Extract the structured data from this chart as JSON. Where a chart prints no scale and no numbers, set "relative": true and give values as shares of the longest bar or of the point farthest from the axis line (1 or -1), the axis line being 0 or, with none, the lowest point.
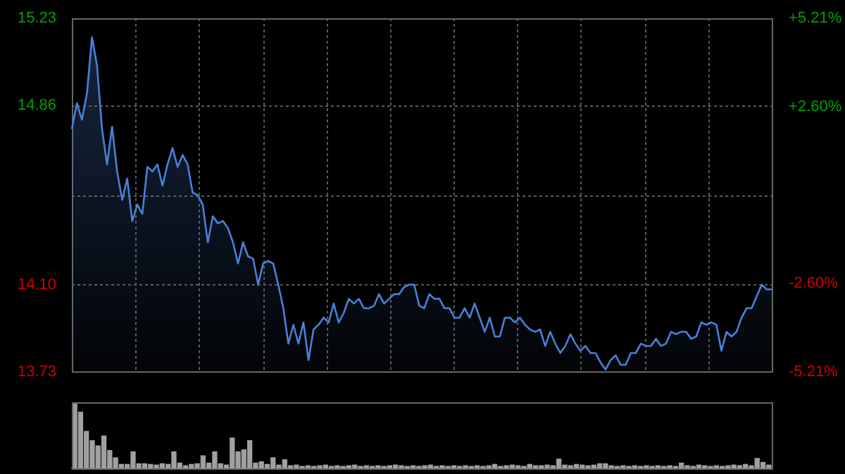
{
  "chart_data": [
    {
      "type": "area",
      "color": "#4a80d8",
      "grid": true,
      "categories": [
        null,
        null,
        null,
        null,
        null,
        null,
        null,
        null,
        null,
        null,
        null,
        null,
        null,
        null,
        null,
        null,
        null,
        null,
        null,
        null,
        null,
        null,
        null,
        null,
        null,
        null,
        null,
        null,
        null,
        null,
        null,
        null,
        null,
        null,
        null,
        null,
        null,
        null,
        null,
        null,
        null,
        null,
        null,
        null,
        null,
        null,
        null,
        null,
        null,
        null,
        null,
        null,
        null,
        null,
        null,
        null,
        null,
        null,
        null,
        null,
        null,
        null,
        null,
        null,
        null,
        null,
        null,
        null,
        null,
        null,
        null,
        null,
        null,
        null,
        null,
        null,
        null,
        null,
        null,
        null,
        null,
        null,
        null,
        null,
        null,
        null,
        null,
        null,
        null,
        null,
        null,
        null,
        null,
        null,
        null,
        null,
        null,
        null,
        null,
        null,
        null,
        null,
        null,
        null,
        null,
        null,
        null,
        null,
        null,
        null,
        null,
        null,
        null,
        null,
        null,
        null,
        null,
        null,
        null,
        null,
        null,
        null,
        null,
        null,
        null,
        null,
        null,
        null,
        null,
        null,
        null,
        null,
        null,
        null,
        null,
        null,
        null,
        null,
        null,
        null
      ],
      "values": [
        14.76,
        14.87,
        14.8,
        14.91,
        15.15,
        15.03,
        14.76,
        14.61,
        14.77,
        14.58,
        14.46,
        14.55,
        14.37,
        14.44,
        14.4,
        14.6,
        14.58,
        14.61,
        14.52,
        14.61,
        14.68,
        14.6,
        14.65,
        14.61,
        14.49,
        14.48,
        14.44,
        14.28,
        14.39,
        14.36,
        14.37,
        14.34,
        14.28,
        14.19,
        14.28,
        14.22,
        14.21,
        14.1,
        14.19,
        14.2,
        14.19,
        14.1,
        14.0,
        13.85,
        13.93,
        13.85,
        13.94,
        13.78,
        13.91,
        13.93,
        13.96,
        13.94,
        14.02,
        13.94,
        13.98,
        14.04,
        14.02,
        14.04,
        14.0,
        14.0,
        14.01,
        14.06,
        14.02,
        14.04,
        14.06,
        14.06,
        14.09,
        14.1,
        14.1,
        14.01,
        14.0,
        14.06,
        14.04,
        14.04,
        14.0,
        14.0,
        13.96,
        13.96,
        14.0,
        13.96,
        14.02,
        13.96,
        13.9,
        13.96,
        13.88,
        13.88,
        13.96,
        13.96,
        13.94,
        13.96,
        13.93,
        13.91,
        13.9,
        13.91,
        13.84,
        13.9,
        13.85,
        13.81,
        13.84,
        13.89,
        13.85,
        13.82,
        13.84,
        13.81,
        13.81,
        13.77,
        13.74,
        13.78,
        13.8,
        13.76,
        13.76,
        13.81,
        13.81,
        13.85,
        13.84,
        13.84,
        13.87,
        13.84,
        13.85,
        13.9,
        13.89,
        13.9,
        13.9,
        13.87,
        13.88,
        13.94,
        13.93,
        13.94,
        13.93,
        13.82,
        13.9,
        13.88,
        13.9,
        13.96,
        14.0,
        14.0,
        14.05,
        14.1,
        14.08,
        14.08
      ],
      "ylim": [
        13.73,
        15.23
      ],
      "yticks": [
        {
          "value": 13.73,
          "label": "13.73"
        },
        {
          "value": 14.1,
          "label": "14.10"
        },
        {
          "value": 14.48,
          "label": null
        },
        {
          "value": 14.86,
          "label": "14.86"
        },
        {
          "value": 15.23,
          "label": "15.23"
        }
      ],
      "y2lim": [
        -5.21,
        5.21
      ],
      "y2ticks": [
        {
          "value": -5.21,
          "label": "-5.21%"
        },
        {
          "value": -2.6,
          "label": "-2.60%"
        },
        {
          "value": 0,
          "label": null
        },
        {
          "value": 2.6,
          "label": "+2.60%"
        },
        {
          "value": 5.21,
          "label": "+5.21%"
        }
      ]
    },
    {
      "type": "bar",
      "relative": true,
      "color": "#a0a0a0",
      "categories": [
        null,
        null,
        null,
        null,
        null,
        null,
        null,
        null,
        null,
        null,
        null,
        null,
        null,
        null,
        null,
        null,
        null,
        null,
        null,
        null,
        null,
        null,
        null,
        null,
        null,
        null,
        null,
        null,
        null,
        null,
        null,
        null,
        null,
        null,
        null,
        null,
        null,
        null,
        null,
        null,
        null,
        null,
        null,
        null,
        null,
        null,
        null,
        null,
        null,
        null,
        null,
        null,
        null,
        null,
        null,
        null,
        null,
        null,
        null,
        null,
        null,
        null,
        null,
        null,
        null,
        null,
        null,
        null,
        null,
        null,
        null,
        null,
        null,
        null,
        null,
        null,
        null,
        null,
        null,
        null,
        null,
        null,
        null,
        null,
        null,
        null,
        null,
        null,
        null,
        null,
        null,
        null,
        null,
        null,
        null,
        null,
        null,
        null,
        null,
        null,
        null,
        null,
        null,
        null,
        null,
        null,
        null,
        null,
        null,
        null,
        null,
        null,
        null,
        null,
        null,
        null,
        null,
        null,
        null,
        null
      ],
      "values": [
        1,
        0.85,
        0.56,
        0.42,
        0.34,
        0.49,
        0.27,
        0.16,
        0.06,
        0.06,
        0.25,
        0.07,
        0.07,
        0.06,
        0.05,
        0.07,
        0.06,
        0.25,
        0.08,
        0.04,
        0.06,
        0.07,
        0.19,
        0.08,
        0.25,
        0.07,
        0.05,
        0.46,
        0.25,
        0.28,
        0.42,
        0.08,
        0.1,
        0.06,
        0.16,
        0.05,
        0.13,
        0.04,
        0.05,
        0.03,
        0.04,
        0.03,
        0.04,
        0.05,
        0.03,
        0.04,
        0.03,
        0.04,
        0.05,
        0.03,
        0.04,
        0.03,
        0.04,
        0.03,
        0.04,
        0.05,
        0.04,
        0.03,
        0.04,
        0.03,
        0.04,
        0.05,
        0.03,
        0.04,
        0.03,
        0.04,
        0.03,
        0.04,
        0.03,
        0.04,
        0.03,
        0.04,
        0.06,
        0.03,
        0.04,
        0.05,
        0.04,
        0.03,
        0.06,
        0.04,
        0.04,
        0.05,
        0.04,
        0.14,
        0.05,
        0.04,
        0.06,
        0.05,
        0.04,
        0.05,
        0.07,
        0.07,
        0.04,
        0.03,
        0.04,
        0.03,
        0.04,
        0.03,
        0.04,
        0.03,
        0.04,
        0.03,
        0.04,
        0.03,
        0.08,
        0.04,
        0.03,
        0.05,
        0.04,
        0.03,
        0.04,
        0.03,
        0.04,
        0.05,
        0.04,
        0.06,
        0.04,
        0.15,
        0.09,
        0.05
      ]
    }
  ]
}
